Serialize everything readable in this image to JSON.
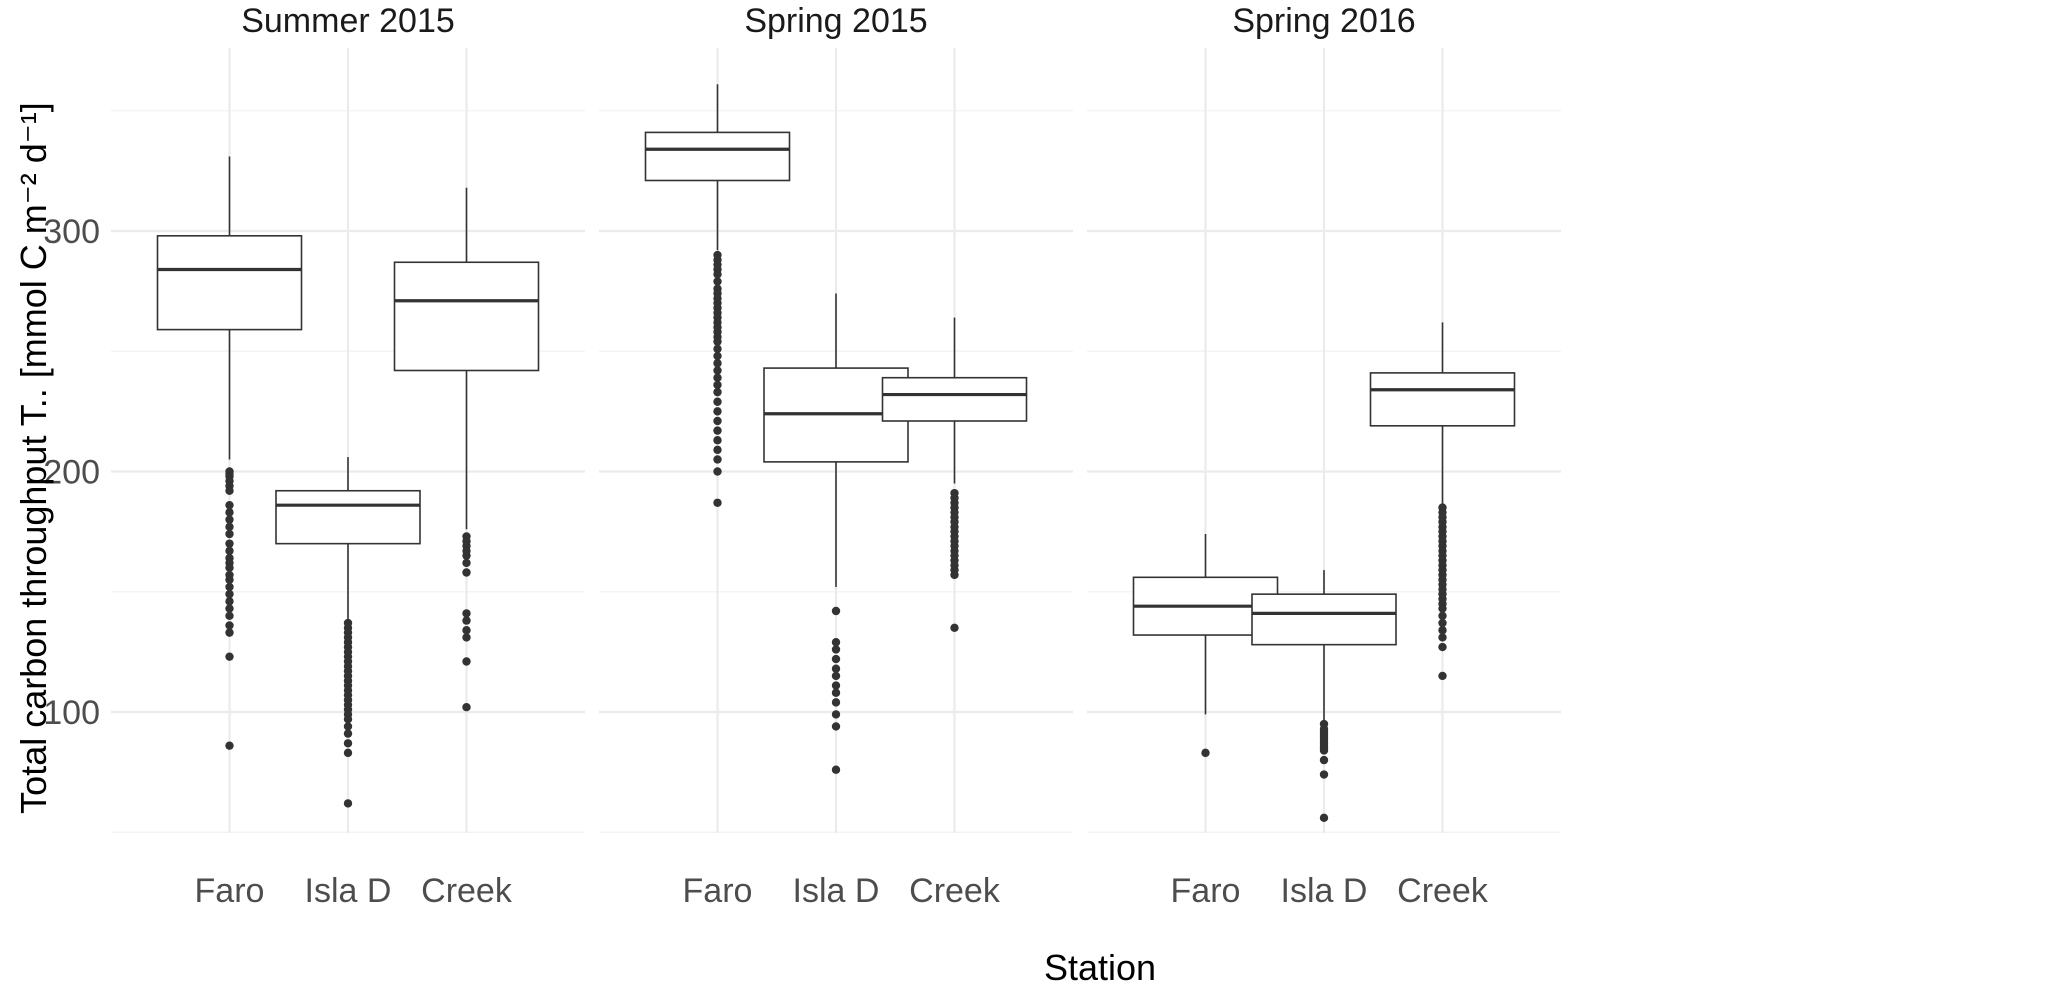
{
  "chart_data": {
    "type": "box",
    "facets": [
      {
        "title": "Summer 2015",
        "stations": [
          {
            "name": "Faro",
            "q1": 259,
            "median": 284,
            "q3": 298,
            "whisker_low": 205,
            "whisker_high": 331,
            "outliers": [
              200,
              199,
              198,
              196,
              194,
              192,
              186,
              183,
              180,
              177,
              174,
              170,
              167,
              164,
              162,
              160,
              157,
              155,
              152,
              149,
              146,
              143,
              140,
              136,
              133,
              123,
              86
            ]
          },
          {
            "name": "Isla D",
            "q1": 170,
            "median": 186,
            "q3": 192,
            "whisker_low": 138,
            "whisker_high": 206,
            "outliers": [
              137,
              135,
              133,
              131,
              129,
              127,
              125,
              123,
              121,
              119,
              117,
              115,
              113,
              111,
              109,
              107,
              105,
              103,
              101,
              99,
              97,
              94,
              91,
              87,
              83,
              62
            ]
          },
          {
            "name": "Creek",
            "q1": 242,
            "median": 271,
            "q3": 287,
            "whisker_low": 176,
            "whisker_high": 318,
            "outliers": [
              173,
              171,
              169,
              167,
              165,
              162,
              158,
              141,
              138,
              134,
              131,
              121,
              102
            ]
          }
        ]
      },
      {
        "title": "Spring 2015",
        "stations": [
          {
            "name": "Faro",
            "q1": 321,
            "median": 334,
            "q3": 341,
            "whisker_low": 292,
            "whisker_high": 361,
            "outliers": [
              290,
              288,
              286,
              284,
              282,
              279,
              276,
              274,
              272,
              270,
              268,
              266,
              264,
              262,
              260,
              258,
              256,
              254,
              251,
              248,
              245,
              242,
              239,
              236,
              233,
              229,
              225,
              221,
              217,
              213,
              209,
              205,
              200,
              187
            ]
          },
          {
            "name": "Isla D",
            "q1": 204,
            "median": 224,
            "q3": 243,
            "whisker_low": 152,
            "whisker_high": 274,
            "outliers": [
              142,
              129,
              126,
              122,
              118,
              115,
              111,
              108,
              104,
              99,
              94,
              76
            ]
          },
          {
            "name": "Creek",
            "q1": 221,
            "median": 232,
            "q3": 239,
            "whisker_low": 195,
            "whisker_high": 264,
            "outliers": [
              191,
              189,
              187,
              185,
              183,
              181,
              179,
              177,
              175,
              173,
              171,
              169,
              167,
              165,
              163,
              161,
              159,
              157,
              135
            ]
          }
        ]
      },
      {
        "title": "Spring 2016",
        "stations": [
          {
            "name": "Faro",
            "q1": 132,
            "median": 144,
            "q3": 156,
            "whisker_low": 99,
            "whisker_high": 174,
            "outliers": [
              83
            ]
          },
          {
            "name": "Isla D",
            "q1": 128,
            "median": 141,
            "q3": 149,
            "whisker_low": 96,
            "whisker_high": 159,
            "outliers": [
              95,
              93,
              92,
              91,
              90,
              89,
              88,
              87,
              86,
              85,
              84,
              80,
              74,
              56
            ]
          },
          {
            "name": "Creek",
            "q1": 219,
            "median": 234,
            "q3": 241,
            "whisker_low": 186,
            "whisker_high": 262,
            "outliers": [
              185,
              183,
              181,
              179,
              177,
              175,
              173,
              171,
              169,
              167,
              165,
              163,
              161,
              159,
              157,
              155,
              153,
              151,
              149,
              147,
              145,
              143,
              140,
              137,
              134,
              131,
              127,
              115
            ]
          }
        ]
      }
    ],
    "categories": [
      "Faro",
      "Isla D",
      "Creek"
    ],
    "xlabel": "Station",
    "ylabel": "Total carbon throughput T.. [mmol C m⁻² d⁻¹]",
    "yticks": [
      100,
      200,
      300
    ],
    "ylim": [
      50,
      370
    ],
    "grid": true,
    "colors": {
      "box_stroke": "#333333",
      "box_fill": "#ffffff",
      "grid": "#ebebeb",
      "tick_text": "#4d4d4d"
    }
  }
}
